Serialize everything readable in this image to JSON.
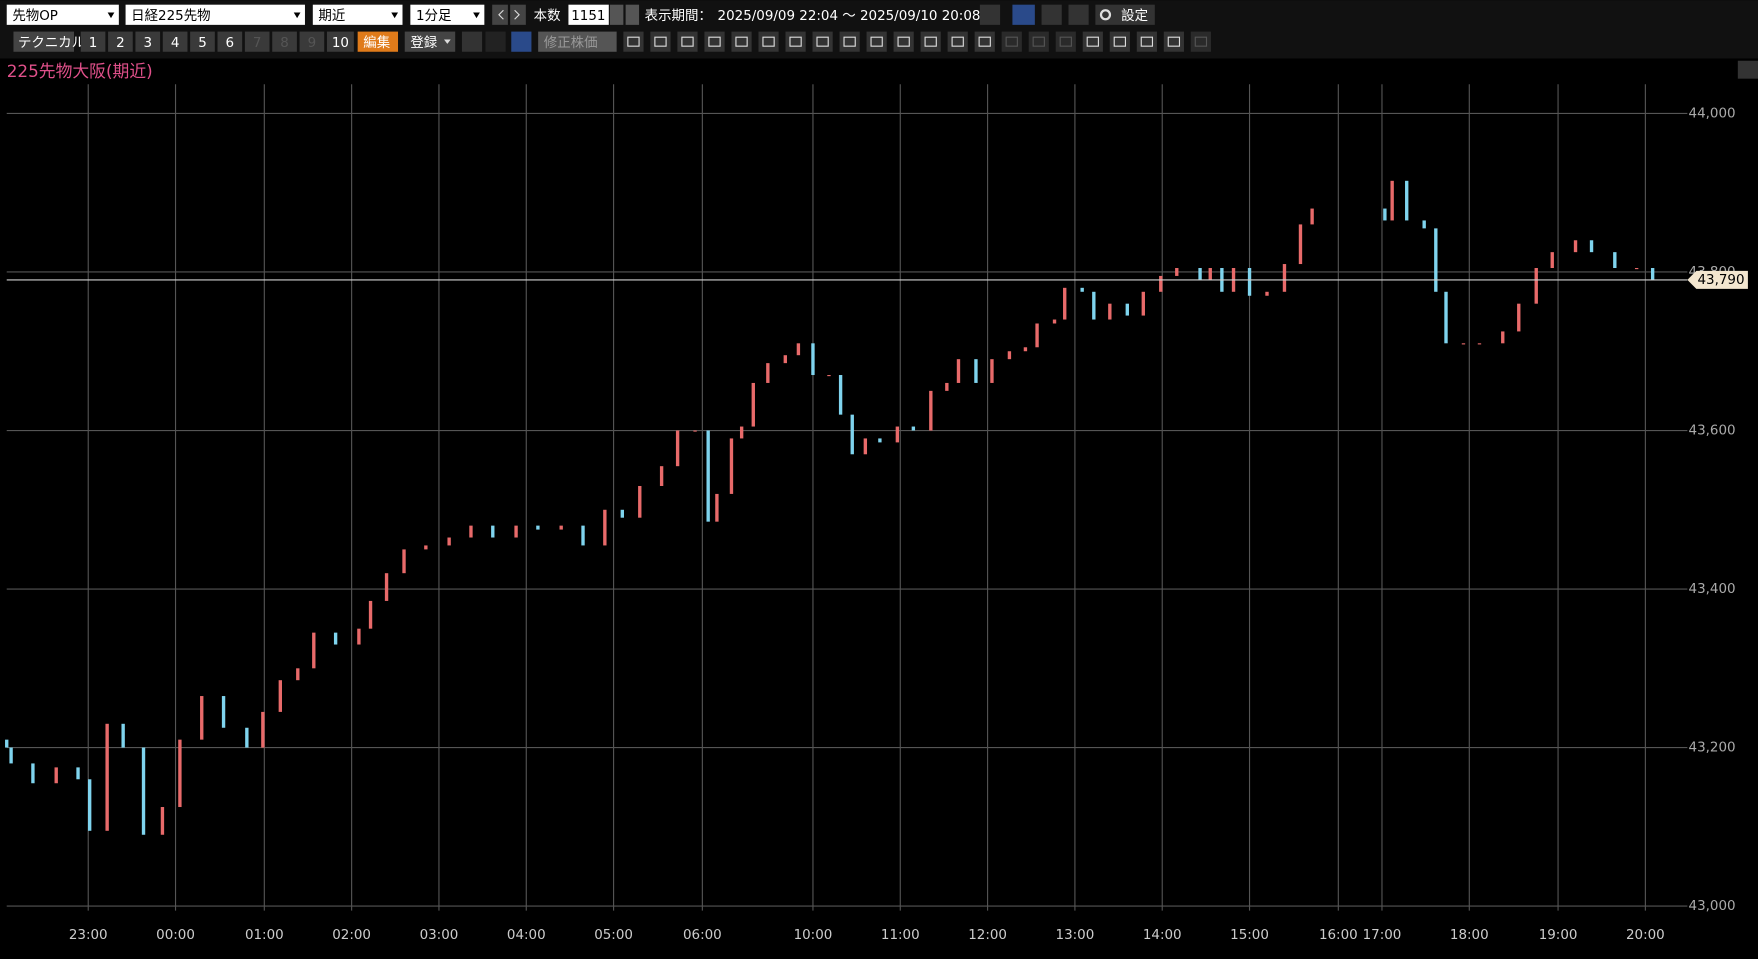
{
  "toolbar": {
    "product": "先物OP",
    "symbol": "日経225先物",
    "contract": "期近",
    "interval": "1分足",
    "count_label": "本数",
    "count": 1151,
    "period_label": "表示期間：",
    "period": "2025/09/09 22:04 ～ 2025/09/10 20:08",
    "settings": "設定",
    "technical": "テクニカル",
    "pages": [
      1,
      2,
      3,
      4,
      5,
      6,
      7,
      8,
      9,
      10
    ],
    "edit": "編集",
    "register": "登録",
    "adjusted": "修正株価"
  },
  "chart_data": {
    "type": "candlestick",
    "title": "225先物大阪(期近)",
    "x": [
      0,
      3,
      18,
      34,
      49,
      57,
      69,
      80,
      94,
      107,
      119,
      134,
      149,
      165,
      176,
      188,
      200,
      211,
      226,
      242,
      250,
      261,
      273,
      288,
      304,
      319,
      334,
      350,
      365,
      381,
      396,
      411,
      423,
      435,
      450,
      461,
      473,
      482,
      488,
      498,
      505,
      513,
      523,
      535,
      544,
      554,
      565,
      573,
      581,
      590,
      600,
      612,
      623,
      635,
      646,
      654,
      666,
      677,
      689,
      700,
      708,
      720,
      727,
      739,
      747,
      758,
      770,
      781,
      793,
      804,
      820,
      827,
      835,
      843,
      854,
      866,
      878,
      889,
      897,
      947,
      952,
      962,
      974,
      982,
      989,
      1001,
      1012,
      1028,
      1039,
      1051,
      1062,
      1078,
      1089,
      1105,
      1120,
      1131
    ],
    "open": [
      43210,
      43200,
      43180,
      43155,
      43175,
      43160,
      43095,
      43230,
      43200,
      43090,
      43125,
      43210,
      43265,
      43225,
      43200,
      43245,
      43285,
      43300,
      43345,
      43330,
      43350,
      43385,
      43420,
      43450,
      43455,
      43465,
      43480,
      43465,
      43480,
      43475,
      43480,
      43455,
      43500,
      43490,
      43530,
      43555,
      43600,
      43600,
      43485,
      43520,
      43590,
      43605,
      43660,
      43685,
      43695,
      43710,
      43670,
      43670,
      43620,
      43570,
      43590,
      43585,
      43605,
      43600,
      43650,
      43660,
      43690,
      43660,
      43690,
      43700,
      43705,
      43735,
      43740,
      43780,
      43775,
      43740,
      43760,
      43745,
      43775,
      43795,
      43805,
      43790,
      43805,
      43775,
      43805,
      43770,
      43775,
      43810,
      43860,
      43880,
      43865,
      43915,
      43865,
      43855,
      43775,
      43710,
      43710,
      43710,
      43725,
      43760,
      43805,
      43825,
      43840,
      43825,
      43805,
      43805
    ],
    "close": [
      43200,
      43180,
      43155,
      43175,
      43160,
      43095,
      43230,
      43200,
      43090,
      43125,
      43210,
      43265,
      43225,
      43200,
      43245,
      43285,
      43300,
      43345,
      43330,
      43350,
      43385,
      43420,
      43450,
      43455,
      43465,
      43480,
      43465,
      43480,
      43475,
      43480,
      43455,
      43500,
      43490,
      43530,
      43555,
      43600,
      43600,
      43485,
      43520,
      43590,
      43605,
      43660,
      43685,
      43695,
      43710,
      43670,
      43670,
      43620,
      43570,
      43590,
      43585,
      43605,
      43600,
      43650,
      43660,
      43690,
      43660,
      43690,
      43700,
      43705,
      43735,
      43740,
      43780,
      43775,
      43740,
      43760,
      43745,
      43775,
      43795,
      43805,
      43790,
      43805,
      43775,
      43805,
      43770,
      43775,
      43810,
      43860,
      43880,
      43865,
      43915,
      43865,
      43855,
      43775,
      43710,
      43710,
      43710,
      43725,
      43760,
      43805,
      43825,
      43840,
      43825,
      43805,
      43805,
      43790
    ],
    "up_color": "#e86a6a",
    "down_color": "#7fd4ee",
    "xlim": [
      0,
      1151
    ],
    "xticks": [
      {
        "value": 56,
        "label": "23:00"
      },
      {
        "value": 116,
        "label": "00:00"
      },
      {
        "value": 177,
        "label": "01:00"
      },
      {
        "value": 237,
        "label": "02:00"
      },
      {
        "value": 297,
        "label": "03:00"
      },
      {
        "value": 357,
        "label": "04:00"
      },
      {
        "value": 417,
        "label": "05:00"
      },
      {
        "value": 478,
        "label": "06:00"
      },
      {
        "value": 554,
        "label": "10:00"
      },
      {
        "value": 614,
        "label": "11:00"
      },
      {
        "value": 674,
        "label": "12:00"
      },
      {
        "value": 734,
        "label": "13:00"
      },
      {
        "value": 794,
        "label": "14:00"
      },
      {
        "value": 854,
        "label": "15:00"
      },
      {
        "value": 915,
        "label": "16:00"
      },
      {
        "value": 945,
        "label": "17:00"
      },
      {
        "value": 1005,
        "label": "18:00"
      },
      {
        "value": 1066,
        "label": "19:00"
      },
      {
        "value": 1126,
        "label": "20:00"
      }
    ],
    "ylim": [
      43000,
      44000
    ],
    "yticks": [
      {
        "value": 43000,
        "label": "43,000"
      },
      {
        "value": 43200,
        "label": "43,200"
      },
      {
        "value": 43400,
        "label": "43,400"
      },
      {
        "value": 43600,
        "label": "43,600"
      },
      {
        "value": 43800,
        "label": "43,800"
      },
      {
        "value": 44000,
        "label": "44,000"
      }
    ],
    "grid": true,
    "last_price": {
      "value": 43790,
      "label": "43,790"
    }
  }
}
